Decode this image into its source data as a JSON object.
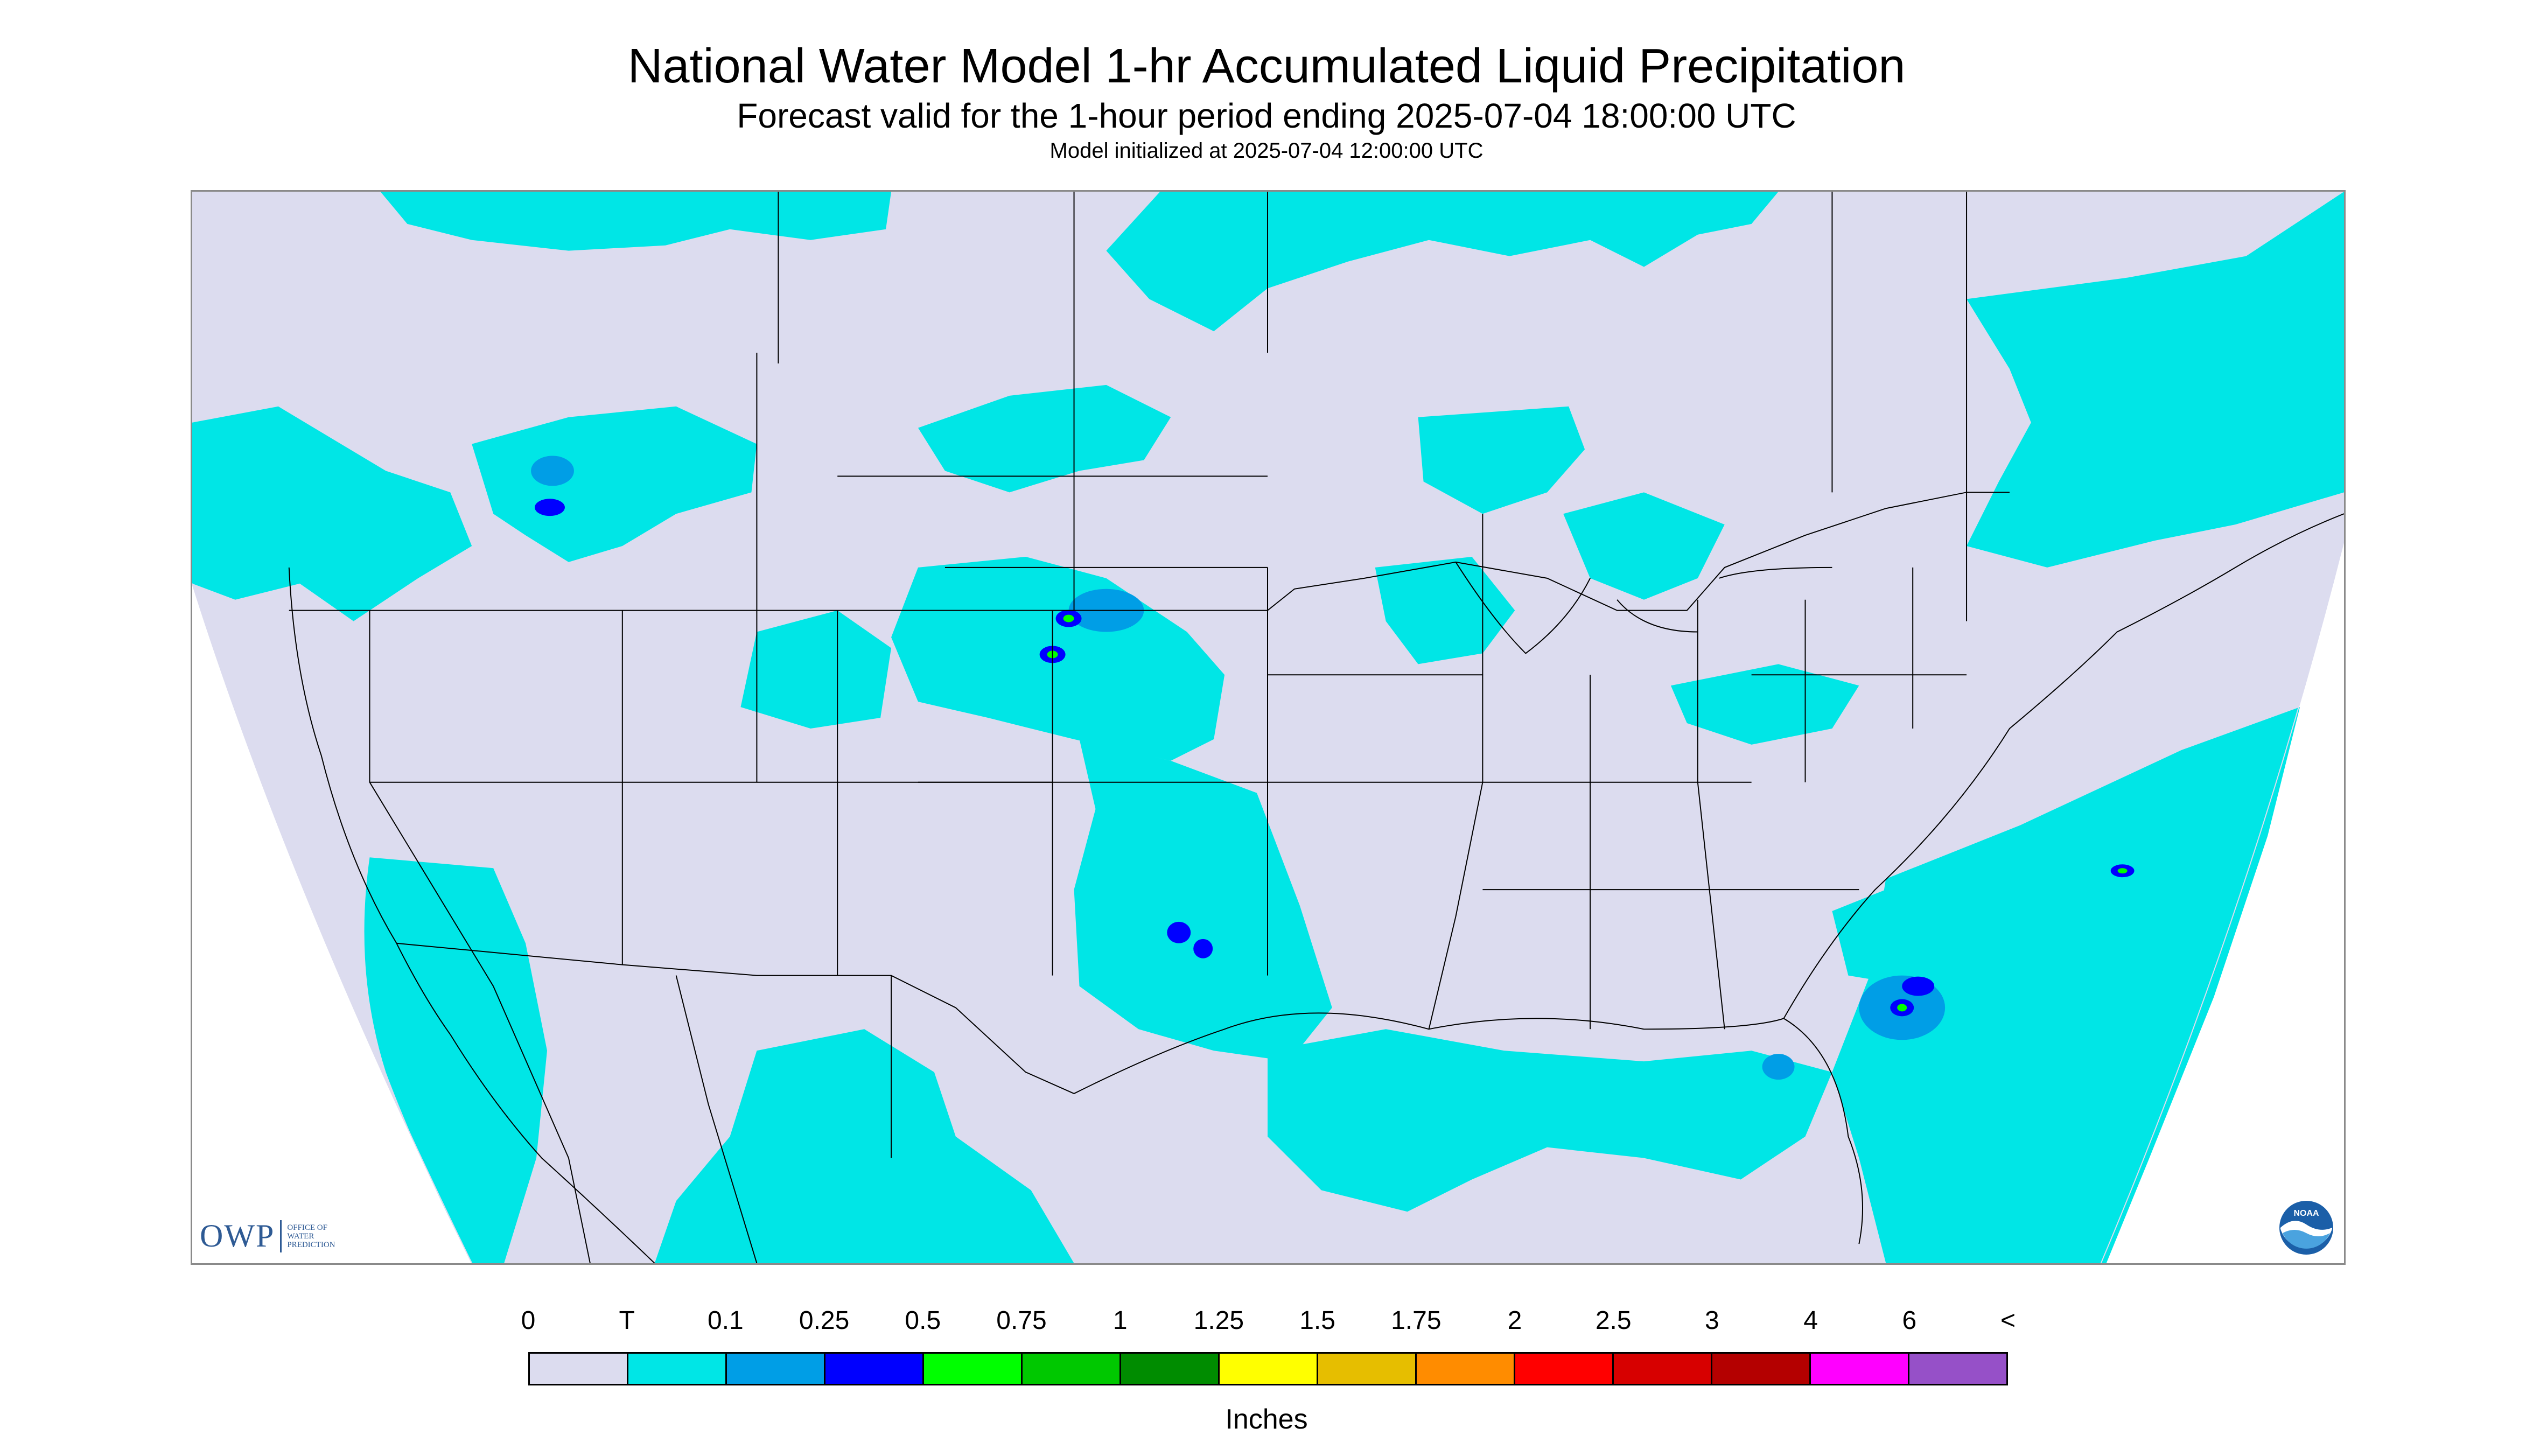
{
  "header": {
    "title": "National Water Model 1-hr Accumulated Liquid Precipitation",
    "subtitle": "Forecast valid for the 1-hour period ending 2025-07-04 18:00:00 UTC",
    "init_line": "Model initialized at 2025-07-04 12:00:00 UTC"
  },
  "logos": {
    "owp_letters": "OWP",
    "owp_text": "OFFICE OF WATER PREDICTION",
    "noaa_text": "NOAA"
  },
  "legend": {
    "tick_labels": [
      "0",
      "T",
      "0.1",
      "0.25",
      "0.5",
      "0.75",
      "1",
      "1.25",
      "1.5",
      "1.75",
      "2",
      "2.5",
      "3",
      "4",
      "6",
      "<"
    ],
    "colors": [
      "#dcdcef",
      "#00e6e6",
      "#009ee6",
      "#0000ff",
      "#00ff00",
      "#00c800",
      "#008c00",
      "#ffff00",
      "#e6be00",
      "#ff8c00",
      "#ff0000",
      "#d70000",
      "#b40000",
      "#ff00ff",
      "#9650c8"
    ],
    "units": "Inches"
  },
  "colors": {
    "no_precip": "#dcdcef",
    "trace": "#00e6e6",
    "light": "#009ee6",
    "moderate": "#0000ff",
    "heavy": "#00ff00",
    "boundary": "#000000",
    "outside_domain": "#ffffff"
  }
}
